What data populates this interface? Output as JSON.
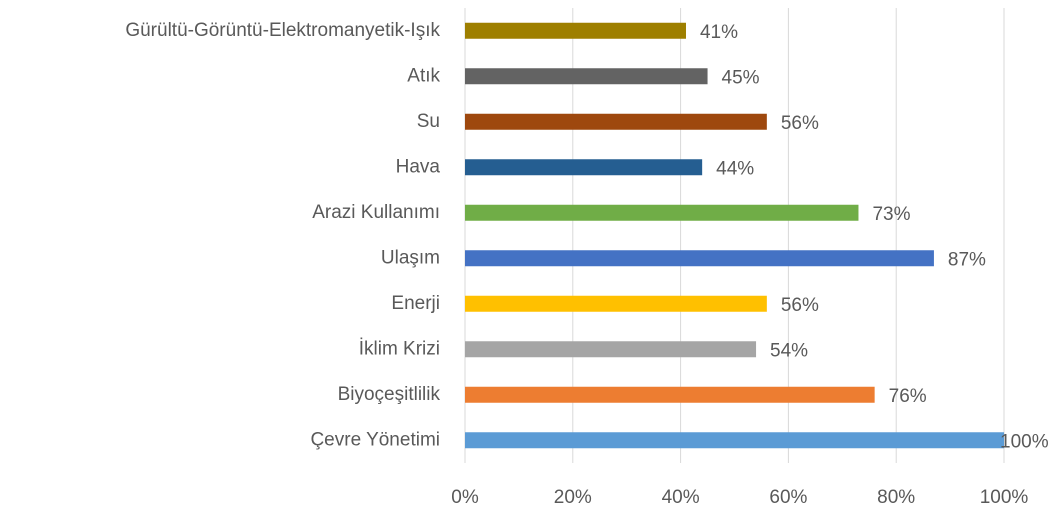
{
  "chart_data": {
    "type": "barh",
    "categories": [
      "Gürültü-Görüntü-Elektromanyetik-Işık",
      "Atık",
      "Su",
      "Hava",
      "Arazi Kullanımı",
      "Ulaşım",
      "Enerji",
      "İklim Krizi",
      "Biyoçeşitlilik",
      "Çevre Yönetimi"
    ],
    "values": [
      41,
      45,
      56,
      44,
      73,
      87,
      56,
      54,
      76,
      100
    ],
    "value_labels": [
      "41%",
      "45%",
      "56%",
      "44%",
      "73%",
      "87%",
      "56%",
      "54%",
      "76%",
      "100%"
    ],
    "colors": [
      "#9e7f00",
      "#636363",
      "#9e480e",
      "#255e91",
      "#70ad47",
      "#4472c4",
      "#ffc000",
      "#a5a5a5",
      "#ed7d31",
      "#5b9bd5"
    ],
    "xlim": [
      0,
      100
    ],
    "xticks": [
      {
        "value": 0,
        "label": "0%"
      },
      {
        "value": 20,
        "label": "20%"
      },
      {
        "value": 40,
        "label": "40%"
      },
      {
        "value": 60,
        "label": "60%"
      },
      {
        "value": 80,
        "label": "80%"
      },
      {
        "value": 100,
        "label": "100%"
      }
    ],
    "grid": true
  }
}
